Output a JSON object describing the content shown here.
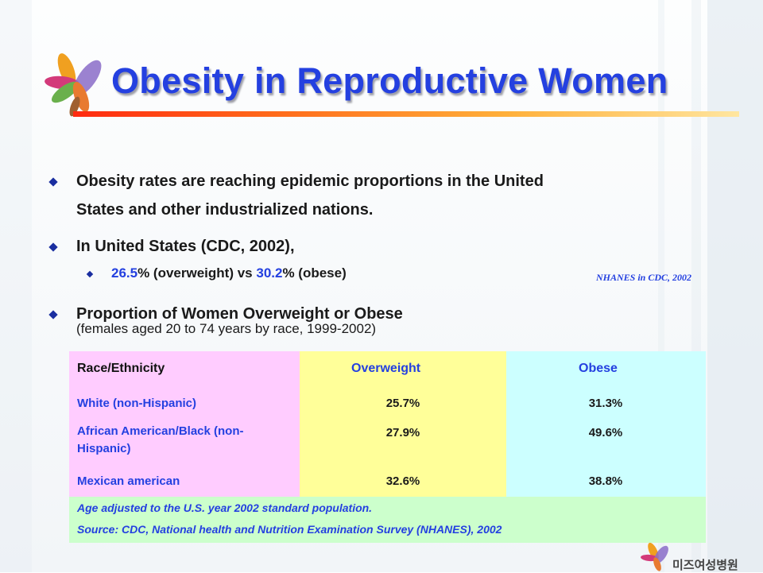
{
  "slide": {
    "title": "Obesity in Reproductive Women",
    "bullets": [
      {
        "line1": "Obesity rates are reaching epidemic proportions in the United",
        "line2": "States and other industrialized nations."
      },
      {
        "text": "In United States (CDC, 2002),",
        "sub": {
          "val1": "26.5",
          "mid": "% (overweight) vs ",
          "val2": "30.2",
          "end": "% (obese)"
        }
      },
      {
        "text": "Proportion of Women Overweight or Obese",
        "subtitle": "(females aged 20 to 74 years by race, 1999-2002)"
      }
    ],
    "citation": "NHANES in CDC, 2002",
    "table": {
      "headers": [
        "Race/Ethnicity",
        "Overweight",
        "Obese"
      ],
      "rows": [
        {
          "race": "White (non-Hispanic)",
          "overweight": "25.7%",
          "obese": "31.3%"
        },
        {
          "race": "African American/Black (non-Hispanic)",
          "overweight": "27.9%",
          "obese": "49.6%"
        },
        {
          "race": "Mexican american",
          "overweight": "32.6%",
          "obese": "38.8%"
        }
      ],
      "notes": [
        "Age adjusted to the U.S. year 2002 standard population.",
        "Source: CDC, National health and Nutrition Examination Survey (NHANES), 2002"
      ]
    },
    "footer_logo_text": "미즈여성병원",
    "colors": {
      "title": "#2440e0",
      "accent_bar_start": "#ff2a10",
      "accent_bar_end": "#ffe6a0"
    }
  }
}
